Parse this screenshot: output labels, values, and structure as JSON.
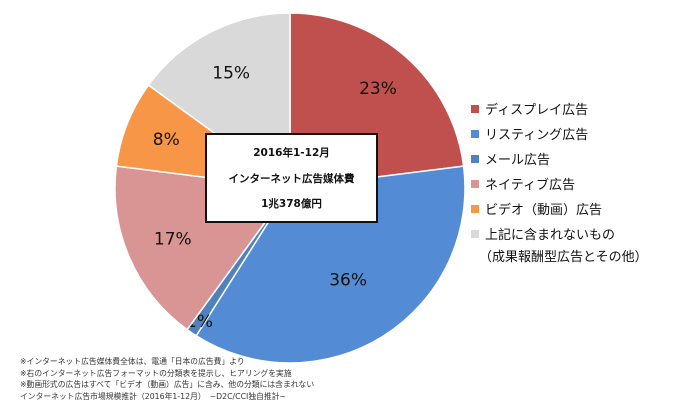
{
  "chart_data": {
    "type": "pie",
    "center_label": {
      "period": "2016年1-12月",
      "title": "インターネット広告媒体費",
      "total": "1兆378億円"
    },
    "slices": [
      {
        "name": "ディスプレイ広告",
        "value": 23,
        "label": "23%",
        "color": "#c0504d"
      },
      {
        "name": "リスティング広告",
        "value": 36,
        "label": "36%",
        "color": "#538cd5"
      },
      {
        "name": "メール広告",
        "value": 1,
        "label": "1%",
        "color": "#4f81bd"
      },
      {
        "name": "ネイティブ広告",
        "value": 17,
        "label": "17%",
        "color": "#d99594"
      },
      {
        "name": "ビデオ（動画）広告",
        "value": 8,
        "label": "8%",
        "color": "#f79646"
      },
      {
        "name": "上記に含まれないもの",
        "value": 15,
        "label": "15%",
        "color": "#d9d9d9"
      }
    ],
    "legend_note": "（成果報酬型広告とその他）",
    "legend_position": "right"
  },
  "notes": [
    "※インターネット広告媒体費全体は、電通「日本の広告費」より",
    "※右のインターネット広告フォーマットの分類表を提示し、ヒアリングを実施",
    "※動画形式の広告はすべて「ビデオ（動画）広告」に含み、他の分類には含まれない",
    "インターネット広告市場規模推計（2016年1-12月）　~D2C/CCI独自推計~"
  ]
}
